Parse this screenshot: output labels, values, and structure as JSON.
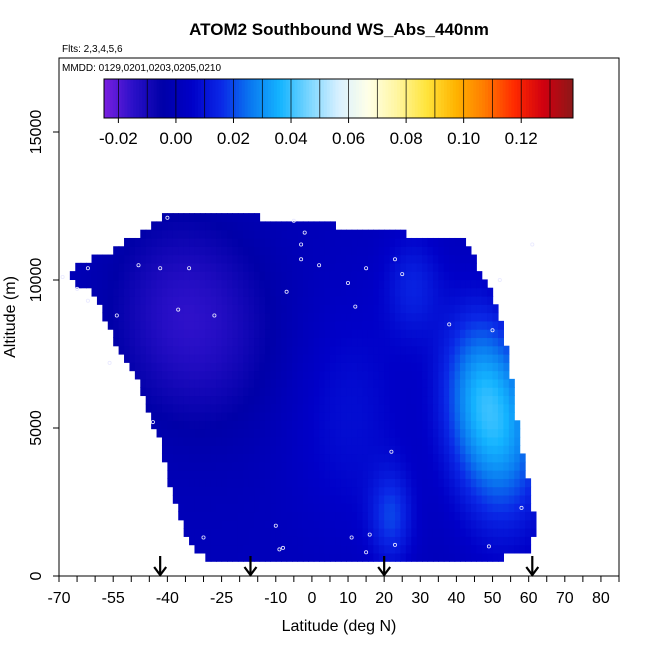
{
  "chart_data": {
    "type": "heatmap",
    "title": "ATOM2 Southbound WS_Abs_440nm",
    "flights_label": "Flts: 2,3,4,5,6",
    "dates_label": "MMDD: 0129,0201,0203,0205,0210",
    "xlabel": "Latitude (deg N)",
    "ylabel": "Altitude (m)",
    "xlim": [
      -70,
      85
    ],
    "ylim": [
      0,
      17500
    ],
    "x_tick_labels": [
      "-70",
      "-55",
      "-40",
      "-25",
      "-10",
      "0",
      "10",
      "20",
      "30",
      "40",
      "50",
      "60",
      "70",
      "80"
    ],
    "x_tick_values": [
      -70,
      -55,
      -40,
      -25,
      -10,
      0,
      10,
      20,
      30,
      40,
      50,
      60,
      70,
      80
    ],
    "y_tick_labels": [
      "0",
      "5000",
      "10000",
      "15000"
    ],
    "y_tick_values": [
      0,
      5000,
      10000,
      15000
    ],
    "colorbar": {
      "min": -0.025,
      "max": 0.138,
      "tick_labels": [
        "-0.02",
        "0.00",
        "0.02",
        "0.04",
        "0.06",
        "0.08",
        "0.10",
        "0.12"
      ],
      "tick_values": [
        -0.02,
        0.0,
        0.02,
        0.04,
        0.06,
        0.08,
        0.1,
        0.12
      ],
      "colors": [
        "#7a1fe0",
        "#2a10c8",
        "#0000a8",
        "#0000c8",
        "#0a28e6",
        "#0a78f0",
        "#14b4ff",
        "#7ad6ff",
        "#d8f0ff",
        "#ffffe8",
        "#fff6a0",
        "#ffe43c",
        "#ffb400",
        "#ff7a00",
        "#ff2a00",
        "#d00010",
        "#8c1818"
      ]
    },
    "field_outline": {
      "lat": [
        -68,
        -60,
        -55,
        -48,
        -45,
        -42,
        -40,
        -38,
        -35,
        -30,
        18,
        32,
        52,
        60,
        62,
        60,
        57,
        55,
        52,
        48,
        42,
        35,
        24,
        10,
        -10,
        -25,
        -40,
        -43,
        -46,
        -50,
        -55,
        -60,
        -65,
        -68
      ],
      "alt_m": [
        10000,
        9500,
        8000,
        6500,
        5500,
        4500,
        3500,
        2500,
        1500,
        600,
        600,
        600,
        600,
        800,
        1500,
        3000,
        5000,
        7000,
        8800,
        10000,
        11400,
        11400,
        11600,
        11800,
        12000,
        12400,
        12400,
        12000,
        11600,
        11400,
        11000,
        10800,
        10500,
        10000
      ]
    },
    "field_features": [
      {
        "lat": -30,
        "alt_m": 8200,
        "value": -0.012,
        "spread_deg": 22,
        "spread_m": 3500
      },
      {
        "lat": -40,
        "alt_m": 9500,
        "value": -0.006,
        "spread_deg": 18,
        "spread_m": 3000
      },
      {
        "lat": 53,
        "alt_m": 4800,
        "value": 0.028,
        "spread_deg": 12,
        "spread_m": 3200
      },
      {
        "lat": 45,
        "alt_m": 6500,
        "value": 0.02,
        "spread_deg": 10,
        "spread_m": 2800
      },
      {
        "lat": 22,
        "alt_m": 2000,
        "value": 0.016,
        "spread_deg": 6,
        "spread_m": 1600
      },
      {
        "lat": 28,
        "alt_m": 9800,
        "value": 0.012,
        "spread_deg": 8,
        "spread_m": 1800
      },
      {
        "lat": 10,
        "alt_m": 5500,
        "value": 0.008,
        "spread_deg": 16,
        "spread_m": 4000
      },
      {
        "lat": 55,
        "alt_m": 10500,
        "value": -0.005,
        "spread_deg": 6,
        "spread_m": 1600
      }
    ],
    "observation_points": [
      {
        "lat": -40,
        "alt_m": 12100
      },
      {
        "lat": -5,
        "alt_m": 12000
      },
      {
        "lat": -2,
        "alt_m": 11600
      },
      {
        "lat": 61,
        "alt_m": 11200
      },
      {
        "lat": -3,
        "alt_m": 11200
      },
      {
        "lat": -3,
        "alt_m": 10700
      },
      {
        "lat": 23,
        "alt_m": 10700
      },
      {
        "lat": 2,
        "alt_m": 10500
      },
      {
        "lat": 15,
        "alt_m": 10400
      },
      {
        "lat": -48,
        "alt_m": 10500
      },
      {
        "lat": -34,
        "alt_m": 10400
      },
      {
        "lat": -42,
        "alt_m": 10400
      },
      {
        "lat": -62,
        "alt_m": 10400
      },
      {
        "lat": -69,
        "alt_m": 10100
      },
      {
        "lat": 25,
        "alt_m": 10200
      },
      {
        "lat": 52,
        "alt_m": 10000
      },
      {
        "lat": 10,
        "alt_m": 9900
      },
      {
        "lat": -65,
        "alt_m": 9700
      },
      {
        "lat": -7,
        "alt_m": 9600
      },
      {
        "lat": -62,
        "alt_m": 9300
      },
      {
        "lat": 12,
        "alt_m": 9100
      },
      {
        "lat": -37,
        "alt_m": 9000
      },
      {
        "lat": -27,
        "alt_m": 8800
      },
      {
        "lat": -54,
        "alt_m": 8800
      },
      {
        "lat": 38,
        "alt_m": 8500
      },
      {
        "lat": 50,
        "alt_m": 8300
      },
      {
        "lat": -56,
        "alt_m": 7200
      },
      {
        "lat": -44,
        "alt_m": 5200
      },
      {
        "lat": 22,
        "alt_m": 4200
      },
      {
        "lat": 58,
        "alt_m": 2300
      },
      {
        "lat": -10,
        "alt_m": 1700
      },
      {
        "lat": 16,
        "alt_m": 1400
      },
      {
        "lat": 11,
        "alt_m": 1300
      },
      {
        "lat": -30,
        "alt_m": 1300
      },
      {
        "lat": 23,
        "alt_m": 1050
      },
      {
        "lat": -8,
        "alt_m": 950
      },
      {
        "lat": -9,
        "alt_m": 900
      },
      {
        "lat": 15,
        "alt_m": 800
      },
      {
        "lat": 49,
        "alt_m": 1000
      }
    ],
    "arrow_latitudes": [
      -42,
      -17,
      20,
      61
    ]
  }
}
